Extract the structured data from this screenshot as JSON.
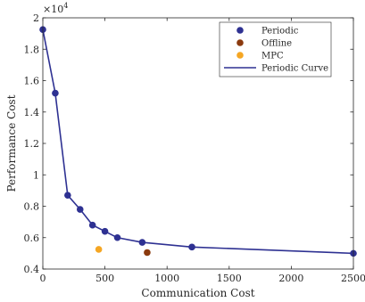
{
  "chart_data": {
    "type": "scatter",
    "title": "",
    "xlabel": "Communication Cost",
    "ylabel": "Performance Cost",
    "y_multiplier": "×10",
    "y_multiplier_exponent": "4",
    "xlim": [
      0,
      2500
    ],
    "ylim": [
      0.4,
      2
    ],
    "x_ticks": [
      0,
      500,
      1000,
      1500,
      2000,
      2500
    ],
    "x_tick_labels": [
      "0",
      "500",
      "1000",
      "1500",
      "2000",
      "2500"
    ],
    "y_ticks": [
      0.4,
      0.6,
      0.8,
      1,
      1.2,
      1.4,
      1.6,
      1.8,
      2
    ],
    "y_tick_labels": [
      "0.4",
      "0.6",
      "0.8",
      "1",
      "1.2",
      "1.4",
      "1.6",
      "1.8",
      "2"
    ],
    "grid": false,
    "legend_position": "top-right",
    "series": [
      {
        "name": "Periodic",
        "kind": "scatter",
        "color": "#2e3192",
        "x": [
          0,
          100,
          200,
          300,
          400,
          500,
          600,
          800,
          1200,
          2500
        ],
        "y": [
          1.925,
          1.52,
          0.87,
          0.78,
          0.68,
          0.64,
          0.6,
          0.57,
          0.54,
          0.5
        ]
      },
      {
        "name": "Offline",
        "kind": "scatter",
        "color": "#8b3a0e",
        "x": [
          840
        ],
        "y": [
          0.505
        ]
      },
      {
        "name": "MPC",
        "kind": "scatter",
        "color": "#f5a623",
        "x": [
          450
        ],
        "y": [
          0.525
        ]
      },
      {
        "name": "Periodic Curve",
        "kind": "line",
        "color": "#2e3192",
        "x": [
          0,
          100,
          200,
          300,
          400,
          500,
          600,
          800,
          1200,
          2500
        ],
        "y": [
          1.925,
          1.52,
          0.87,
          0.78,
          0.68,
          0.64,
          0.6,
          0.57,
          0.54,
          0.5
        ]
      }
    ]
  }
}
